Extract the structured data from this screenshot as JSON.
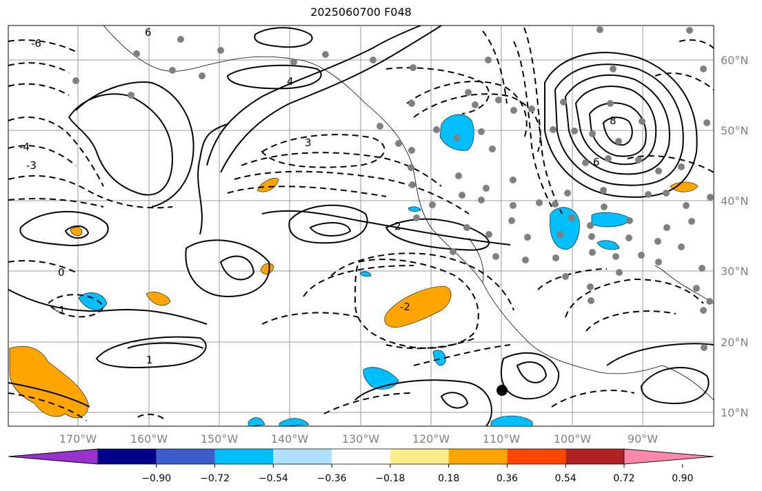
{
  "title": "2025060700 F048",
  "map": {
    "lat_ticks": [
      "60°N",
      "50°N",
      "40°N",
      "30°N",
      "20°N",
      "10°N"
    ],
    "lon_ticks": [
      "170°W",
      "160°W",
      "150°W",
      "140°W",
      "130°W",
      "120°W",
      "110°W",
      "100°W",
      "90°W"
    ],
    "contour_labels": [
      "6",
      "4",
      "3",
      "2",
      "1",
      "0",
      "-1",
      "-2",
      "-3",
      "-4",
      "-6",
      "8",
      "6"
    ]
  },
  "colorbar": {
    "tick_labels": [
      "−0.90",
      "−0.72",
      "−0.54",
      "−0.36",
      "−0.18",
      "0.18",
      "0.36",
      "0.54",
      "0.72",
      "0.90"
    ],
    "colors": [
      "#9932cc",
      "#00008b",
      "#3a5fcd",
      "#00bfff",
      "#b0e2ff",
      "#ffffff",
      "#ffec8b",
      "#ffa500",
      "#ff4500",
      "#b22222",
      "#ff88aa"
    ]
  }
}
